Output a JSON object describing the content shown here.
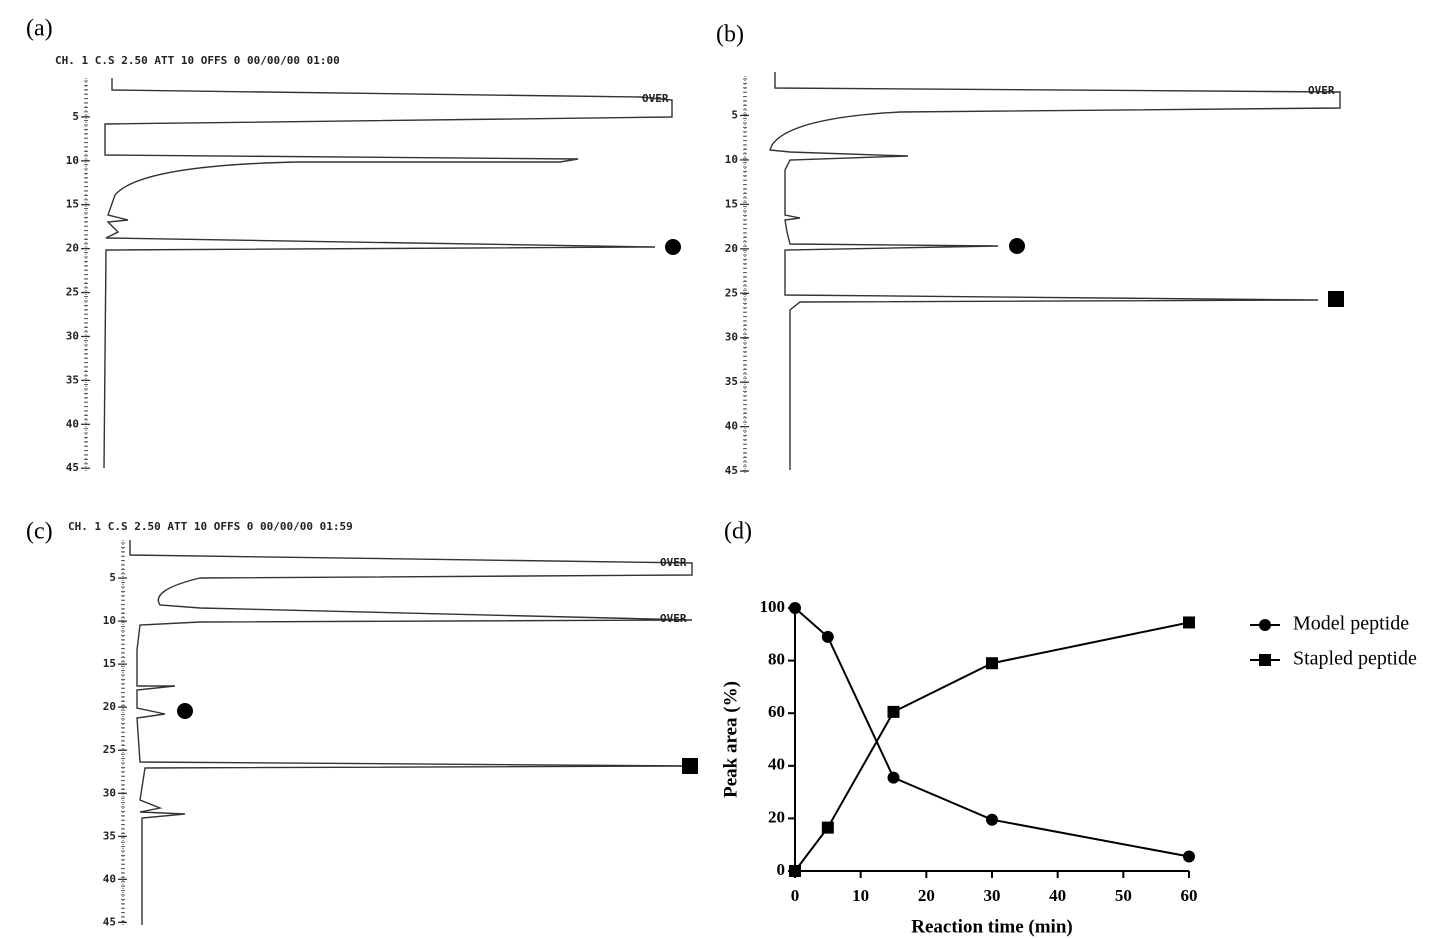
{
  "chart_data": [
    {
      "type": "chromatogram",
      "panel": "(a)",
      "header": "CH. 1 C.S 2.50 ATT 10 OFFS 0 00/00/00 01:00",
      "annotations": [
        "OVER"
      ],
      "ylim": [
        0,
        46
      ],
      "yticks": [
        5,
        10,
        15,
        20,
        25,
        30,
        35,
        40,
        45
      ]
    },
    {
      "type": "chromatogram",
      "panel": "(b)",
      "annotations": [
        "OVER"
      ],
      "ylim": [
        0,
        46
      ],
      "yticks": [
        5,
        10,
        15,
        20,
        25,
        30,
        35,
        40,
        45
      ]
    },
    {
      "type": "chromatogram",
      "panel": "(c)",
      "header": "CH. 1 C.S 2.50 ATT 10 OFFS 0 00/00/00 01:59",
      "annotations": [
        "OVER",
        "OVER"
      ],
      "ylim": [
        0,
        46
      ],
      "yticks": [
        5,
        10,
        15,
        20,
        25,
        30,
        35,
        40,
        45
      ]
    },
    {
      "type": "line",
      "panel": "(d)",
      "x": [
        0,
        5,
        15,
        30,
        60
      ],
      "series": [
        {
          "name": "Model peptide",
          "color": "#000000",
          "marker": "circle",
          "values": [
            100,
            89,
            35.5,
            19.5,
            5.5
          ]
        },
        {
          "name": "Stapled peptide",
          "color": "#000000",
          "marker": "square",
          "values": [
            0,
            16.5,
            60.5,
            79,
            94.5
          ]
        }
      ],
      "xlim": [
        0,
        60
      ],
      "xticks": [
        0,
        10,
        20,
        30,
        40,
        50,
        60
      ],
      "ylim": [
        0,
        100
      ],
      "yticks": [
        0,
        20,
        40,
        60,
        80,
        100
      ],
      "xlabel": "Reaction time (min)",
      "ylabel": "Peak area (%)",
      "legend": "right"
    }
  ]
}
